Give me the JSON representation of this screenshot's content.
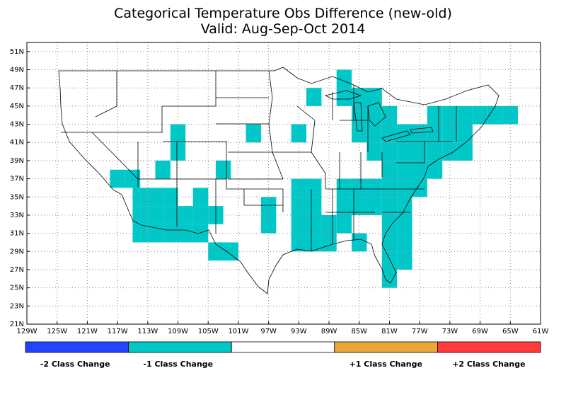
{
  "title": "Categorical Temperature Obs Difference (new-old)",
  "subtitle": "Valid: Aug-Sep-Oct 2014",
  "map": {
    "lon_range": [
      -129,
      -61
    ],
    "lat_range": [
      21,
      52
    ],
    "lon_ticks": [
      "129W",
      "125W",
      "121W",
      "117W",
      "113W",
      "109W",
      "105W",
      "101W",
      "97W",
      "93W",
      "89W",
      "85W",
      "81W",
      "77W",
      "73W",
      "69W",
      "65W",
      "61W"
    ],
    "lat_ticks": [
      "21N",
      "23N",
      "25N",
      "27N",
      "29N",
      "31N",
      "33N",
      "35N",
      "37N",
      "39N",
      "41N",
      "43N",
      "45N",
      "47N",
      "49N",
      "51N"
    ],
    "grid_lines": "dotted",
    "cell_color": "#00c8c8",
    "cells_minus1": [
      [
        -117,
        37
      ],
      [
        -115,
        37
      ],
      [
        -114,
        35
      ],
      [
        -112,
        35
      ],
      [
        -110,
        35
      ],
      [
        -106,
        35
      ],
      [
        -114,
        33
      ],
      [
        -112,
        33
      ],
      [
        -110,
        33
      ],
      [
        -108,
        33
      ],
      [
        -106,
        33
      ],
      [
        -104,
        33
      ],
      [
        -114,
        31
      ],
      [
        -112,
        31
      ],
      [
        -110,
        31
      ],
      [
        -108,
        31
      ],
      [
        -106,
        31
      ],
      [
        -104,
        29
      ],
      [
        -102,
        29
      ],
      [
        -109,
        42
      ],
      [
        -109,
        40
      ],
      [
        -111,
        38
      ],
      [
        -103,
        38
      ],
      [
        -99,
        42
      ],
      [
        -91,
        46
      ],
      [
        -87,
        48
      ],
      [
        -87,
        46
      ],
      [
        -93,
        42
      ],
      [
        -93,
        36
      ],
      [
        -91,
        36
      ],
      [
        -93,
        34
      ],
      [
        -91,
        34
      ],
      [
        -97,
        34
      ],
      [
        -97,
        32
      ],
      [
        -87,
        34
      ],
      [
        -85,
        34
      ],
      [
        -83,
        34
      ],
      [
        -81,
        34
      ],
      [
        -79,
        34
      ],
      [
        -93,
        32
      ],
      [
        -91,
        32
      ],
      [
        -89,
        32
      ],
      [
        -87,
        32
      ],
      [
        -81,
        32
      ],
      [
        -79,
        32
      ],
      [
        -85,
        30
      ],
      [
        -93,
        30
      ],
      [
        -91,
        30
      ],
      [
        -89,
        30
      ],
      [
        -81,
        30
      ],
      [
        -79,
        30
      ],
      [
        -81,
        28
      ],
      [
        -79,
        28
      ],
      [
        -81,
        26
      ],
      [
        -85,
        46
      ],
      [
        -83,
        46
      ],
      [
        -85,
        44
      ],
      [
        -83,
        44
      ],
      [
        -81,
        44
      ],
      [
        -85,
        42
      ],
      [
        -83,
        42
      ],
      [
        -81,
        42
      ],
      [
        -79,
        42
      ],
      [
        -77,
        42
      ],
      [
        -75,
        42
      ],
      [
        -73,
        42
      ],
      [
        -71,
        42
      ],
      [
        -75,
        44
      ],
      [
        -73,
        44
      ],
      [
        -71,
        44
      ],
      [
        -69,
        44
      ],
      [
        -67,
        44
      ],
      [
        -65,
        44
      ],
      [
        -83,
        40
      ],
      [
        -81,
        40
      ],
      [
        -79,
        40
      ],
      [
        -77,
        40
      ],
      [
        -75,
        40
      ],
      [
        -81,
        38
      ],
      [
        -79,
        38
      ],
      [
        -77,
        38
      ],
      [
        -75,
        38
      ],
      [
        -83,
        36
      ],
      [
        -81,
        36
      ],
      [
        -79,
        36
      ],
      [
        -77,
        36
      ],
      [
        -73,
        40
      ],
      [
        -71,
        40
      ],
      [
        -85,
        36
      ],
      [
        -87,
        36
      ]
    ]
  },
  "legend": {
    "items": [
      {
        "label": "-2 Class Change",
        "color": "#2244ff"
      },
      {
        "label": "-1 Class Change",
        "color": "#00c8c8"
      },
      {
        "label": "",
        "color": "#ffffff"
      },
      {
        "label": "+1 Class Change",
        "color": "#e8a838"
      },
      {
        "label": "+2 Class Change",
        "color": "#ff3a3a"
      }
    ]
  }
}
